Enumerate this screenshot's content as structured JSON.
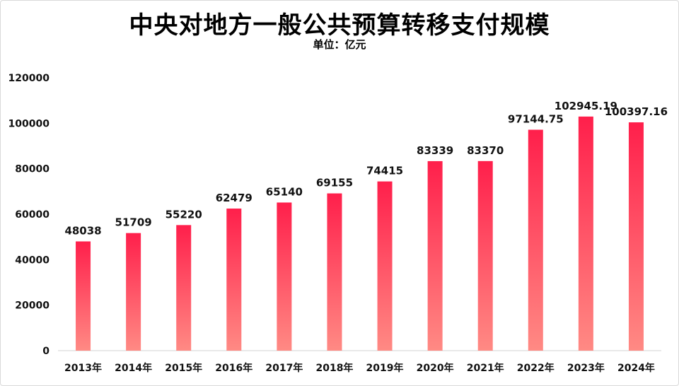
{
  "chart_data": {
    "type": "bar",
    "title": "中央对地方一般公共预算转移支付规模",
    "subtitle": "单位：亿元",
    "categories": [
      "2013年",
      "2014年",
      "2015年",
      "2016年",
      "2017年",
      "2018年",
      "2019年",
      "2020年",
      "2021年",
      "2022年",
      "2023年",
      "2024年"
    ],
    "values": [
      48038,
      51709,
      55220,
      62479,
      65140,
      69155,
      74415,
      83339,
      83370,
      97144.75,
      102945.19,
      100397.16
    ],
    "value_labels": [
      "48038",
      "51709",
      "55220",
      "62479",
      "65140",
      "69155",
      "74415",
      "83339",
      "83370",
      "97144.75",
      "102945.19",
      "100397.16"
    ],
    "y_ticks": [
      "0",
      "20000",
      "40000",
      "60000",
      "80000",
      "100000",
      "120000"
    ],
    "ylim": [
      0,
      120000
    ],
    "grid": false,
    "legend": "none",
    "bar_color_top": "#ff1f4b",
    "bar_color_bottom": "#ff8a84"
  }
}
